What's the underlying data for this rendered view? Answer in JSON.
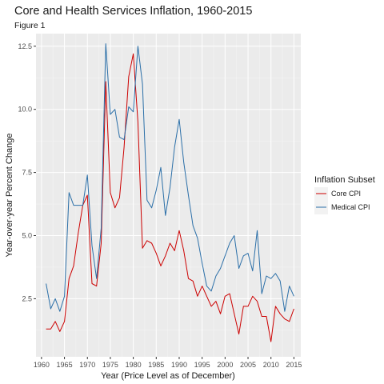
{
  "chart_data": {
    "type": "line",
    "title": "Core and Health Services Inflation, 1960-2015",
    "subtitle": "Figure 1",
    "xlabel": "Year (Price Level as of December)",
    "ylabel": "Year-over-year Percent Change",
    "xlim": [
      1958.8,
      2016.5
    ],
    "ylim": [
      0.2,
      13.0
    ],
    "x_ticks": [
      1960,
      1965,
      1970,
      1975,
      1980,
      1985,
      1990,
      1995,
      2000,
      2005,
      2010,
      2015
    ],
    "y_ticks": [
      2.5,
      5.0,
      7.5,
      10.0,
      12.5
    ],
    "y_tick_labels": [
      "2.5",
      "5.0",
      "7.5",
      "10.0",
      "12.5"
    ],
    "grid": true,
    "legend": {
      "title": "Inflation Subset",
      "position": "right"
    },
    "x": [
      1961,
      1962,
      1963,
      1964,
      1965,
      1966,
      1967,
      1968,
      1969,
      1970,
      1971,
      1972,
      1973,
      1974,
      1975,
      1976,
      1977,
      1978,
      1979,
      1980,
      1981,
      1982,
      1983,
      1984,
      1985,
      1986,
      1987,
      1988,
      1989,
      1990,
      1991,
      1992,
      1993,
      1994,
      1995,
      1996,
      1997,
      1998,
      1999,
      2000,
      2001,
      2002,
      2003,
      2004,
      2005,
      2006,
      2007,
      2008,
      2009,
      2010,
      2011,
      2012,
      2013,
      2014,
      2015
    ],
    "series": [
      {
        "name": "Core CPI",
        "color": "#cc0000",
        "values": [
          1.3,
          1.3,
          1.6,
          1.2,
          1.6,
          3.3,
          3.8,
          5.1,
          6.2,
          6.6,
          3.1,
          3.0,
          4.7,
          11.1,
          6.7,
          6.1,
          6.5,
          8.5,
          11.3,
          12.2,
          9.5,
          4.5,
          4.8,
          4.7,
          4.3,
          3.8,
          4.2,
          4.7,
          4.4,
          5.2,
          4.4,
          3.3,
          3.2,
          2.6,
          3.0,
          2.6,
          2.2,
          2.4,
          1.9,
          2.6,
          2.7,
          1.9,
          1.1,
          2.2,
          2.2,
          2.6,
          2.4,
          1.8,
          1.8,
          0.8,
          2.2,
          1.9,
          1.7,
          1.6,
          2.1
        ]
      },
      {
        "name": "Medical CPI",
        "color": "#2b6fa8",
        "values": [
          3.1,
          2.1,
          2.5,
          2.0,
          2.6,
          6.7,
          6.2,
          6.2,
          6.2,
          7.4,
          4.6,
          3.3,
          5.3,
          12.6,
          9.8,
          10.0,
          8.9,
          8.8,
          10.1,
          9.9,
          12.5,
          11.0,
          6.4,
          6.1,
          6.8,
          7.7,
          5.8,
          6.9,
          8.5,
          9.6,
          7.9,
          6.6,
          5.4,
          4.9,
          3.9,
          3.0,
          2.8,
          3.4,
          3.7,
          4.2,
          4.7,
          5.0,
          3.7,
          4.2,
          4.3,
          3.6,
          5.2,
          2.7,
          3.4,
          3.3,
          3.5,
          3.2,
          2.0,
          3.0,
          2.6
        ]
      }
    ]
  }
}
